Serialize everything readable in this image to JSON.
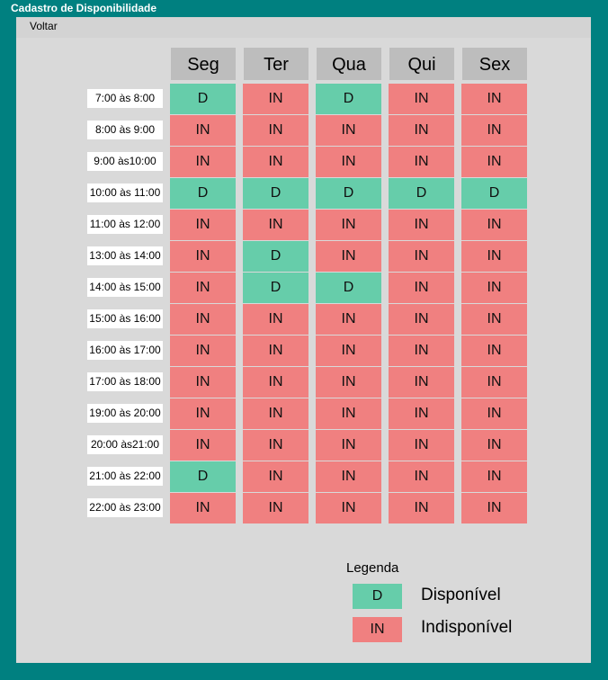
{
  "window": {
    "title": "Cadastro de Disponibilidade"
  },
  "menu": {
    "back_label": "Voltar"
  },
  "days": [
    "Seg",
    "Ter",
    "Qua",
    "Qui",
    "Sex"
  ],
  "time_slots": [
    "7:00 às 8:00",
    "8:00 às 9:00",
    "9:00 às10:00",
    "10:00 às 11:00",
    "11:00 às 12:00",
    "13:00 às 14:00",
    "14:00 às 15:00",
    "15:00 às 16:00",
    "16:00 às 17:00",
    "17:00 às 18:00",
    "19:00 às 20:00",
    "20:00 às21:00",
    "21:00 às 22:00",
    "22:00 às 23:00"
  ],
  "grid": [
    [
      "D",
      "IN",
      "D",
      "IN",
      "IN"
    ],
    [
      "IN",
      "IN",
      "IN",
      "IN",
      "IN"
    ],
    [
      "IN",
      "IN",
      "IN",
      "IN",
      "IN"
    ],
    [
      "D",
      "D",
      "D",
      "D",
      "D"
    ],
    [
      "IN",
      "IN",
      "IN",
      "IN",
      "IN"
    ],
    [
      "IN",
      "D",
      "IN",
      "IN",
      "IN"
    ],
    [
      "IN",
      "D",
      "D",
      "IN",
      "IN"
    ],
    [
      "IN",
      "IN",
      "IN",
      "IN",
      "IN"
    ],
    [
      "IN",
      "IN",
      "IN",
      "IN",
      "IN"
    ],
    [
      "IN",
      "IN",
      "IN",
      "IN",
      "IN"
    ],
    [
      "IN",
      "IN",
      "IN",
      "IN",
      "IN"
    ],
    [
      "IN",
      "IN",
      "IN",
      "IN",
      "IN"
    ],
    [
      "D",
      "IN",
      "IN",
      "IN",
      "IN"
    ],
    [
      "IN",
      "IN",
      "IN",
      "IN",
      "IN"
    ]
  ],
  "legend": {
    "title": "Legenda",
    "available_code": "D",
    "available_label": "Disponível",
    "unavailable_code": "IN",
    "unavailable_label": "Indisponível"
  },
  "colors": {
    "window_border": "#008080",
    "available": "#66cdaa",
    "unavailable": "#f08080",
    "header_bg": "#bdbdbd"
  }
}
